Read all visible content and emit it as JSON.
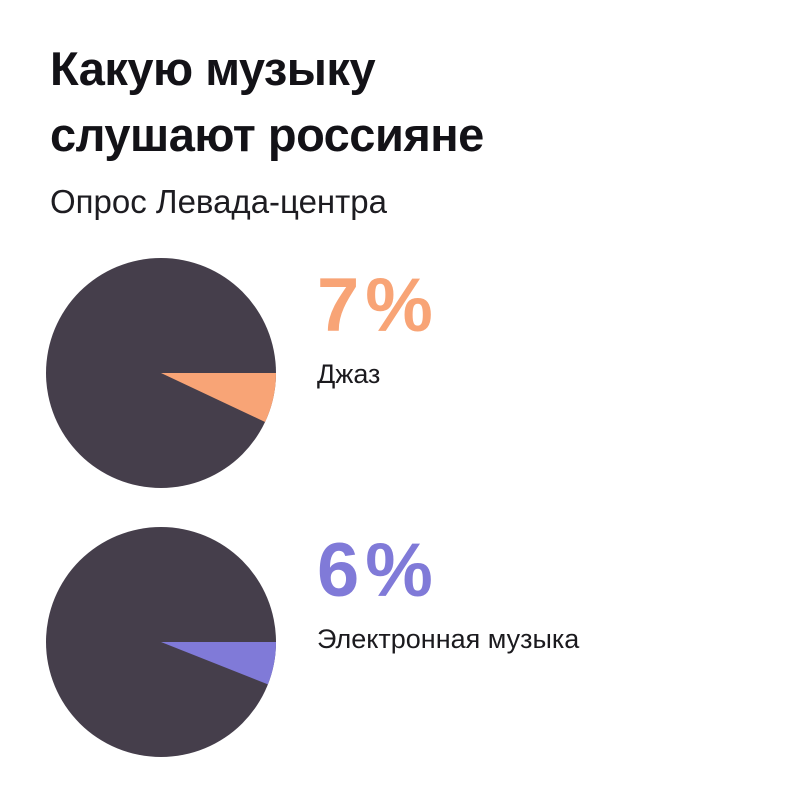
{
  "page": {
    "background": "#FFFFFF"
  },
  "header": {
    "title_line1": "Какую музыку",
    "title_line2": "слушают россияне",
    "subtitle": "Опрос Левада-центра",
    "title_color": "#131217"
  },
  "chart_data": [
    {
      "type": "pie",
      "label": "Джаз",
      "percent_value": 7,
      "percent_display": "7",
      "unit": "%",
      "values": [
        7,
        93
      ],
      "slice_color": "#F8A476",
      "rest_color": "#453E4B",
      "start_angle_deg": 0,
      "direction": "clockwise",
      "legend_position": "right"
    },
    {
      "type": "pie",
      "label": "Электронная музыка",
      "percent_value": 6,
      "percent_display": "6",
      "unit": "%",
      "values": [
        6,
        94
      ],
      "slice_color": "#807AD8",
      "rest_color": "#453E4B",
      "start_angle_deg": 0,
      "direction": "clockwise",
      "legend_position": "right"
    }
  ]
}
